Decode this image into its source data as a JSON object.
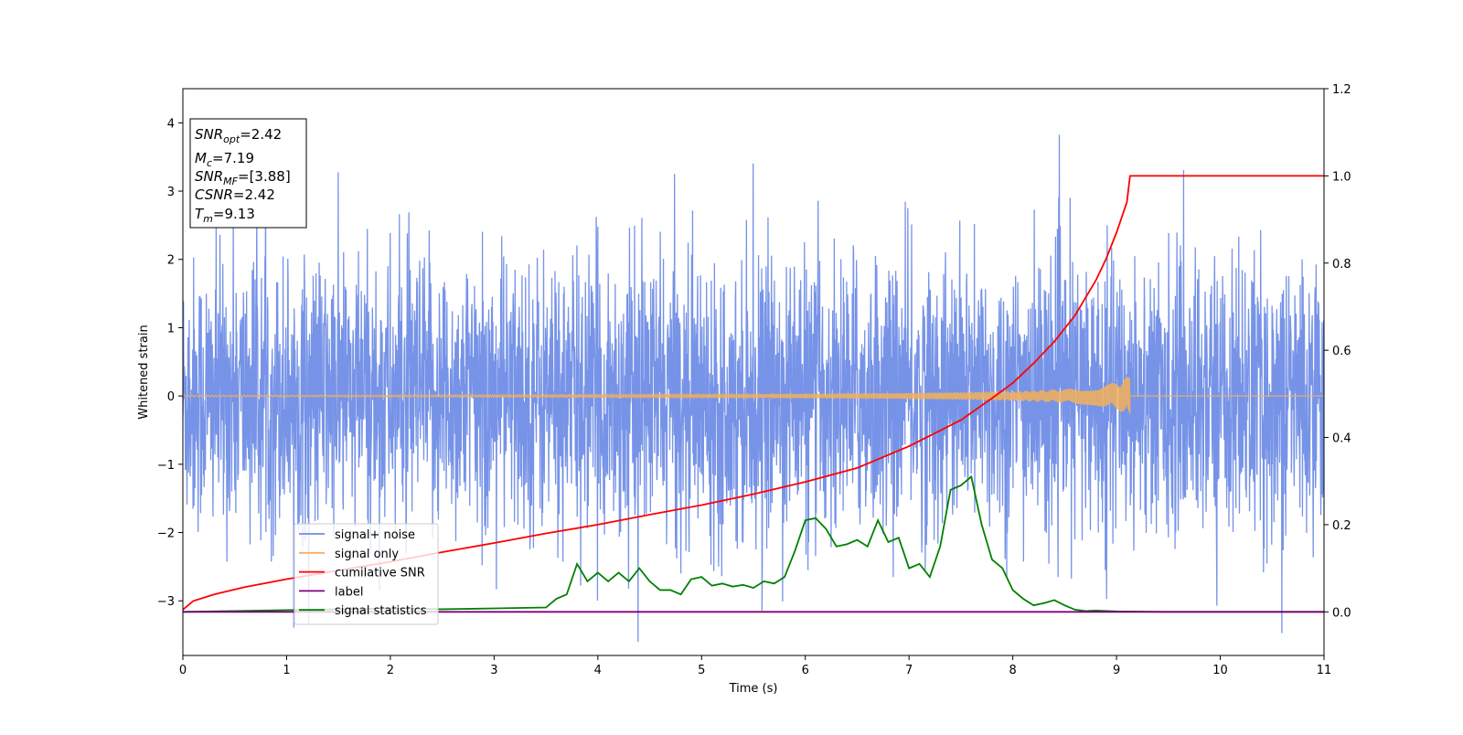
{
  "chart_data": {
    "type": "line",
    "xlabel": "Time (s)",
    "ylabel": "Whitened strain",
    "xlim": [
      0,
      11
    ],
    "ylim_left": [
      -3.8,
      4.5
    ],
    "ylim_right": [
      -0.1,
      1.2
    ],
    "x_ticks": [
      0,
      1,
      2,
      3,
      4,
      5,
      6,
      7,
      8,
      9,
      10,
      11
    ],
    "x_tick_labels": [
      "0",
      "1",
      "2",
      "3",
      "4",
      "5",
      "6",
      "7",
      "8",
      "9",
      "10",
      "11"
    ],
    "y_ticks_left": [
      -3,
      -2,
      -1,
      0,
      1,
      2,
      3,
      4
    ],
    "y_tick_labels_left": [
      "−3",
      "−2",
      "−1",
      "0",
      "1",
      "2",
      "3",
      "4"
    ],
    "y_ticks_right": [
      0.0,
      0.2,
      0.4,
      0.6,
      0.8,
      1.0,
      1.2
    ],
    "y_tick_labels_right": [
      "0.0",
      "0.2",
      "0.4",
      "0.6",
      "0.8",
      "1.0",
      "1.2"
    ],
    "grid": false,
    "legend_placement": "lower-left",
    "info_box": {
      "snr_opt": "=2.42",
      "mc": "=7.19",
      "snr_mf": "=[3.88]",
      "csnr": "=2.42",
      "tm": "=9.13"
    },
    "series": [
      {
        "name": "signal+ noise",
        "color": "#6f8de6",
        "axis": "left",
        "description_values": {
          "mean": 0.0,
          "std": 1.0,
          "t_start": 0,
          "t_end": 11
        }
      },
      {
        "name": "signal only",
        "color": "#f5b05a",
        "axis": "left",
        "chirp_end_time": 9.13,
        "envelope": {
          "x": [
            0,
            1,
            2,
            3,
            4,
            5,
            6,
            7,
            8,
            8.5,
            8.8,
            9.0,
            9.13
          ],
          "y": [
            0.01,
            0.012,
            0.014,
            0.017,
            0.02,
            0.025,
            0.032,
            0.045,
            0.07,
            0.1,
            0.14,
            0.2,
            0.3
          ]
        }
      },
      {
        "name": "cumilative SNR",
        "color": "#ff0000",
        "axis": "right",
        "x": [
          0,
          0.1,
          0.3,
          0.6,
          1.0,
          1.5,
          2.0,
          2.5,
          3.0,
          3.5,
          4.0,
          4.5,
          5.0,
          5.5,
          6.0,
          6.5,
          7.0,
          7.5,
          7.8,
          8.0,
          8.2,
          8.4,
          8.6,
          8.8,
          8.9,
          9.0,
          9.1,
          9.13,
          11
        ],
        "y": [
          0.005,
          0.025,
          0.04,
          0.057,
          0.075,
          0.095,
          0.115,
          0.137,
          0.158,
          0.18,
          0.2,
          0.223,
          0.245,
          0.27,
          0.298,
          0.33,
          0.38,
          0.44,
          0.49,
          0.525,
          0.57,
          0.62,
          0.68,
          0.76,
          0.81,
          0.87,
          0.94,
          1.0,
          1.0
        ]
      },
      {
        "name": "label",
        "color": "#800080",
        "axis": "right",
        "x": [
          0,
          11
        ],
        "y": [
          0,
          0
        ]
      },
      {
        "name": "signal statistics",
        "color": "#008000",
        "axis": "right",
        "x": [
          0,
          0.5,
          1.0,
          1.5,
          2.0,
          2.5,
          3.0,
          3.5,
          3.6,
          3.7,
          3.8,
          3.9,
          4.0,
          4.1,
          4.2,
          4.3,
          4.4,
          4.5,
          4.6,
          4.7,
          4.8,
          4.9,
          5.0,
          5.1,
          5.2,
          5.3,
          5.4,
          5.5,
          5.6,
          5.7,
          5.8,
          5.9,
          6.0,
          6.1,
          6.2,
          6.3,
          6.4,
          6.5,
          6.6,
          6.7,
          6.8,
          6.9,
          7.0,
          7.1,
          7.2,
          7.3,
          7.4,
          7.5,
          7.6,
          7.7,
          7.8,
          7.9,
          8.0,
          8.1,
          8.2,
          8.3,
          8.4,
          8.5,
          8.6,
          8.7,
          8.8,
          9.0,
          9.5,
          10.0,
          11.0
        ],
        "y": [
          0.0,
          0.002,
          0.004,
          0.006,
          0.008,
          0.006,
          0.008,
          0.01,
          0.03,
          0.04,
          0.11,
          0.07,
          0.09,
          0.07,
          0.09,
          0.07,
          0.1,
          0.07,
          0.05,
          0.05,
          0.04,
          0.075,
          0.08,
          0.06,
          0.065,
          0.058,
          0.062,
          0.055,
          0.07,
          0.065,
          0.08,
          0.14,
          0.21,
          0.215,
          0.19,
          0.15,
          0.155,
          0.165,
          0.15,
          0.21,
          0.16,
          0.17,
          0.1,
          0.11,
          0.08,
          0.15,
          0.28,
          0.29,
          0.31,
          0.2,
          0.12,
          0.1,
          0.05,
          0.03,
          0.015,
          0.02,
          0.027,
          0.015,
          0.005,
          0.002,
          0.003,
          0.001,
          0.0,
          0.0,
          0.0
        ]
      }
    ]
  }
}
